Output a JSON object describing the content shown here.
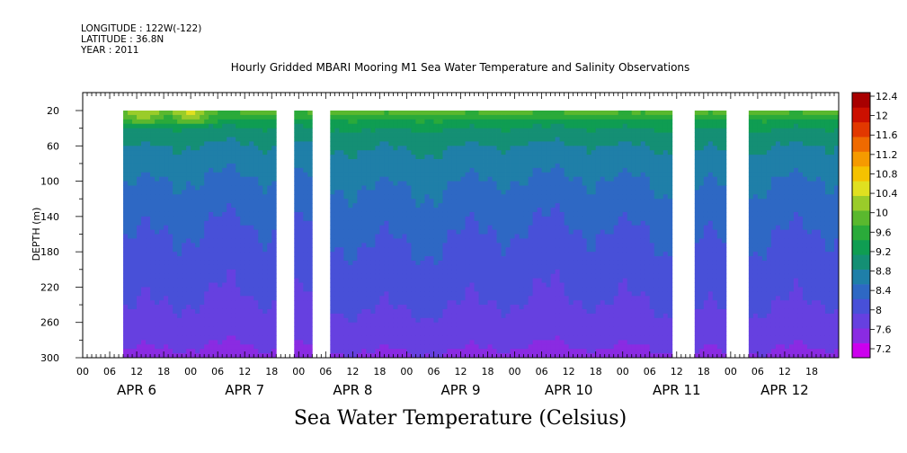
{
  "header": {
    "longitude": "LONGITUDE : 122W(-122)",
    "latitude": "LATITUDE : 36.8N",
    "year": "YEAR : 2011"
  },
  "chart_data": {
    "type": "heatmap",
    "title": "Hourly Gridded MBARI Mooring M1 Sea Water Temperature and Salinity Observations",
    "xlabel": "Sea Water Temperature (Celsius)",
    "ylabel": "DEPTH (m)",
    "y_ticks": [
      20,
      60,
      100,
      140,
      180,
      220,
      260,
      300
    ],
    "ylim": [
      300,
      20
    ],
    "hour_labels": [
      "00",
      "06",
      "12",
      "18"
    ],
    "days": [
      "APR 6",
      "APR 7",
      "APR 8",
      "APR 9",
      "APR 10",
      "APR 11",
      "APR 12"
    ],
    "x_range_hours": [
      0,
      168
    ],
    "data_gaps_hours": [
      [
        0,
        9
      ],
      [
        43,
        47
      ],
      [
        51,
        55
      ],
      [
        131,
        136
      ],
      [
        143.5,
        148
      ]
    ],
    "colorbar": {
      "levels": [
        7.2,
        7.6,
        8,
        8.4,
        8.8,
        9.2,
        9.6,
        10,
        10.4,
        10.8,
        11.2,
        11.6,
        12,
        12.4
      ],
      "colors": [
        "#cc00ee",
        "#8a2be2",
        "#6640e0",
        "#4850d8",
        "#2e68c4",
        "#1f7fa8",
        "#148f74",
        "#0f9d52",
        "#2aaa3a",
        "#5ab82e",
        "#9acc2a",
        "#e0e020",
        "#f5c200",
        "#f59a00",
        "#ef6a00",
        "#e23800",
        "#cc1000",
        "#a80000"
      ]
    },
    "depth_profile_temps": [
      {
        "depth": 20,
        "temp": 10.6
      },
      {
        "depth": 30,
        "temp": 10.0
      },
      {
        "depth": 40,
        "temp": 9.6
      },
      {
        "depth": 60,
        "temp": 9.2
      },
      {
        "depth": 80,
        "temp": 9.0
      },
      {
        "depth": 100,
        "temp": 8.8
      },
      {
        "depth": 130,
        "temp": 8.6
      },
      {
        "depth": 160,
        "temp": 8.4
      },
      {
        "depth": 200,
        "temp": 8.2
      },
      {
        "depth": 240,
        "temp": 8.0
      },
      {
        "depth": 270,
        "temp": 7.8
      },
      {
        "depth": 300,
        "temp": 7.5
      }
    ]
  }
}
